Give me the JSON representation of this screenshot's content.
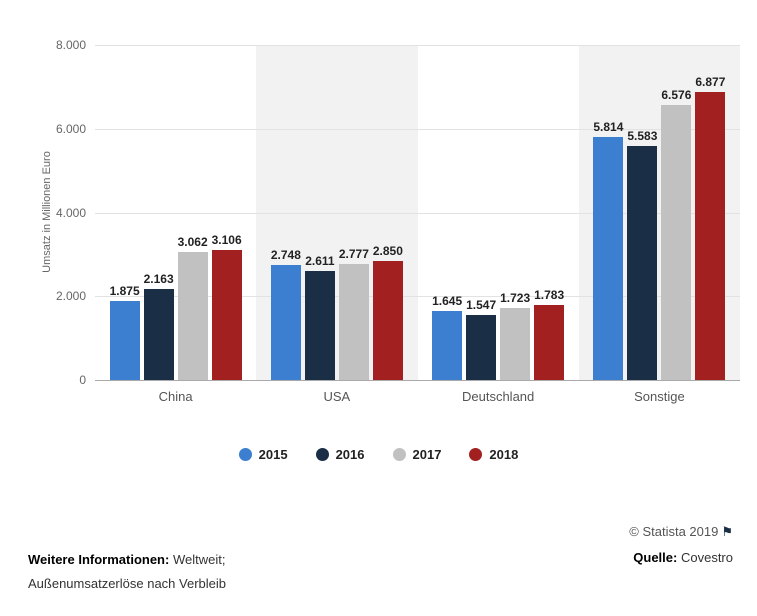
{
  "chart_data": {
    "type": "bar",
    "title": "",
    "xlabel": "",
    "ylabel": "Umsatz in Millionen Euro",
    "ylim": [
      0,
      8000
    ],
    "grid": true,
    "legend_position": "bottom",
    "band_color": "#f2f2f2",
    "categories": [
      "China",
      "USA",
      "Deutschland",
      "Sonstige"
    ],
    "series": [
      {
        "name": "2015",
        "color": "#3c7ecf",
        "values": [
          1875,
          2748,
          1645,
          5814
        ]
      },
      {
        "name": "2016",
        "color": "#1a2e45",
        "values": [
          2163,
          2611,
          1547,
          5583
        ]
      },
      {
        "name": "2017",
        "color": "#c1c1c1",
        "values": [
          3062,
          2777,
          1723,
          6576
        ]
      },
      {
        "name": "2018",
        "color": "#a32020",
        "values": [
          3106,
          2850,
          1783,
          6877
        ]
      }
    ],
    "yticks": [
      {
        "value": 0,
        "label": "0"
      },
      {
        "value": 2000,
        "label": "2.000"
      },
      {
        "value": 4000,
        "label": "4.000"
      },
      {
        "value": 6000,
        "label": "6.000"
      },
      {
        "value": 8000,
        "label": "8.000"
      }
    ]
  },
  "footer": {
    "info_label": "Weitere Informationen:",
    "info_text": "Weltweit;",
    "info_text_line2": "Außenumsatzerlöse nach Verbleib",
    "copyright": "© Statista 2019",
    "source_label": "Quelle:",
    "source": "Covestro"
  }
}
